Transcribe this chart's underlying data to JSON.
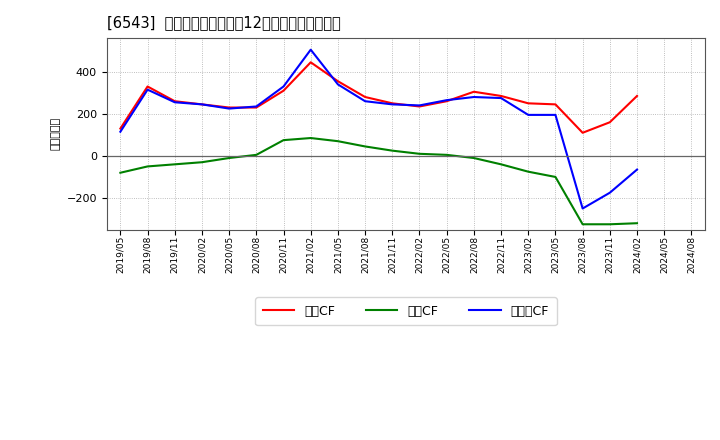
{
  "title": "[6543]  キャッシュフローの12か月移動合計の推移",
  "ylabel": "（百万円）",
  "background_color": "#ffffff",
  "plot_bg_color": "#ffffff",
  "grid_color": "#999999",
  "dates": [
    "2019/05",
    "2019/08",
    "2019/11",
    "2020/02",
    "2020/05",
    "2020/08",
    "2020/11",
    "2021/02",
    "2021/05",
    "2021/08",
    "2021/11",
    "2022/02",
    "2022/05",
    "2022/08",
    "2022/11",
    "2023/02",
    "2023/05",
    "2023/08",
    "2023/11",
    "2024/02",
    "2024/05",
    "2024/08"
  ],
  "eigyo_cf": [
    130,
    330,
    260,
    245,
    230,
    230,
    310,
    445,
    355,
    280,
    250,
    235,
    260,
    305,
    285,
    250,
    245,
    110,
    160,
    285,
    null,
    null
  ],
  "toshi_cf": [
    -80,
    -50,
    -40,
    -30,
    -10,
    5,
    75,
    85,
    70,
    45,
    25,
    10,
    5,
    -10,
    -40,
    -75,
    -100,
    -325,
    -325,
    -320,
    null,
    null
  ],
  "free_cf": [
    115,
    315,
    255,
    245,
    225,
    235,
    330,
    505,
    340,
    260,
    245,
    240,
    265,
    280,
    275,
    195,
    195,
    -250,
    -175,
    -65,
    null,
    null
  ],
  "eigyo_color": "#ff0000",
  "toshi_color": "#008000",
  "free_color": "#0000ff",
  "ylim": [
    -350,
    560
  ],
  "legend_labels": [
    "営業CF",
    "投資CF",
    "フリーCF"
  ]
}
